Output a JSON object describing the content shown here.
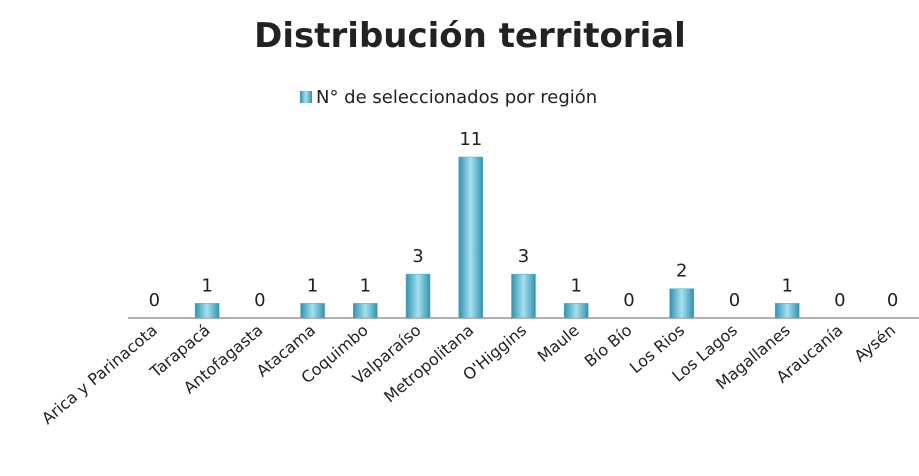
{
  "chart_data": {
    "type": "bar",
    "title": "Distribución territorial",
    "categories": [
      "Arica y Parinacota",
      "Tarapacá",
      "Antofagasta",
      "Atacama",
      "Coquimbo",
      "Valparaíso",
      "Metropolitana",
      "O'Higgins",
      "Maule",
      "Bío Bío",
      "Los Rios",
      "Los Lagos",
      "Magallanes",
      "Araucanía",
      "Aysén"
    ],
    "series": [
      {
        "name": "N° de seleccionados por región",
        "color": "#4bacc6",
        "values": [
          0,
          1,
          0,
          1,
          1,
          3,
          11,
          3,
          1,
          0,
          2,
          0,
          1,
          0,
          0
        ]
      }
    ],
    "ylim": [
      0,
      11
    ]
  }
}
